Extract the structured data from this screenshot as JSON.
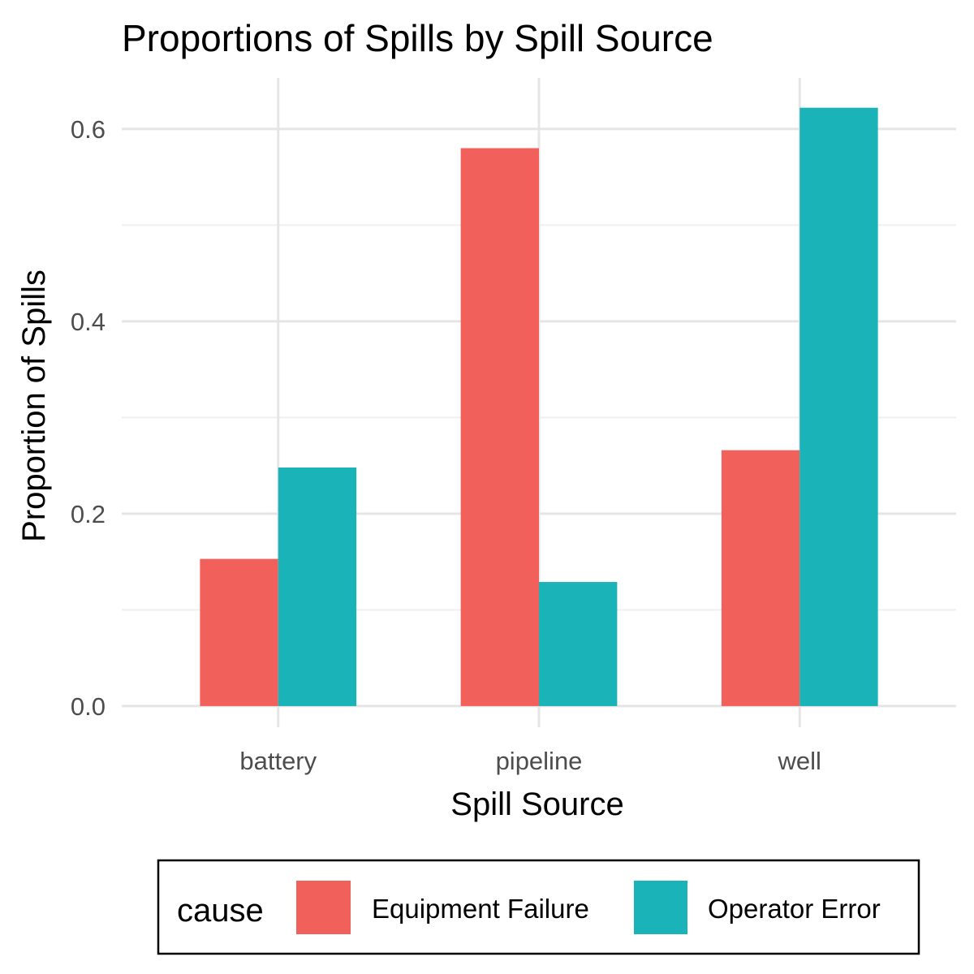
{
  "chart_data": {
    "type": "bar",
    "title": "Proportions of Spills by Spill Source",
    "xlabel": "Spill Source",
    "ylabel": "Proportion of Spills",
    "categories": [
      "battery",
      "pipeline",
      "well"
    ],
    "series": [
      {
        "name": "Equipment Failure",
        "color": "#F2605C",
        "values": [
          0.153,
          0.58,
          0.266
        ]
      },
      {
        "name": "Operator Error",
        "color": "#1AB3B8",
        "values": [
          0.248,
          0.129,
          0.622
        ]
      }
    ],
    "ylim": [
      -0.022,
      0.653
    ],
    "yticks": [
      0.0,
      0.2,
      0.4,
      0.6
    ],
    "ytick_labels": [
      "0.0",
      "0.2",
      "0.4",
      "0.6"
    ],
    "grid": true,
    "legend": {
      "title": "cause",
      "position": "bottom"
    }
  }
}
